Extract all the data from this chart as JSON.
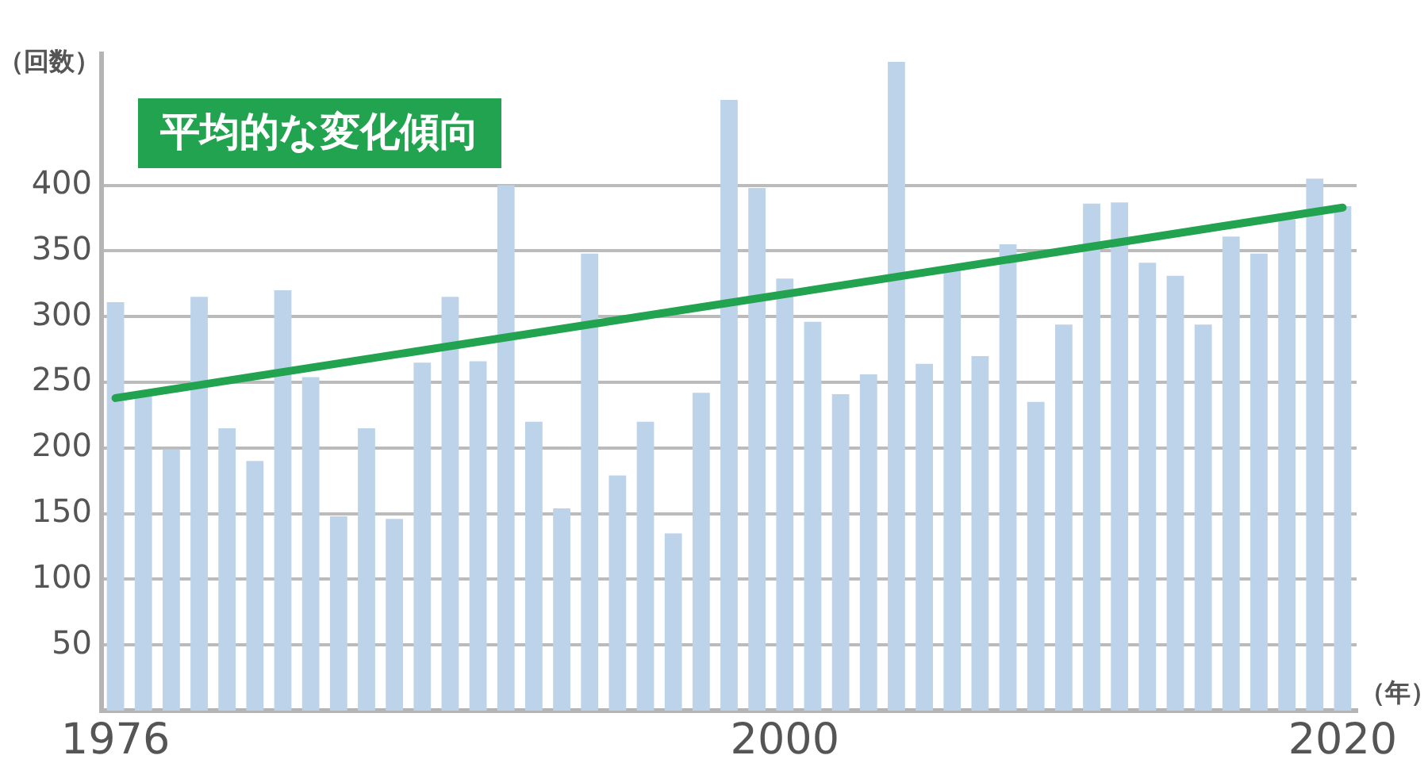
{
  "chart_data": {
    "type": "bar",
    "xlabel": "（年）",
    "ylabel": "（回数）",
    "x": [
      1976,
      1977,
      1978,
      1979,
      1980,
      1981,
      1982,
      1983,
      1984,
      1985,
      1986,
      1987,
      1988,
      1989,
      1990,
      1991,
      1992,
      1993,
      1994,
      1995,
      1996,
      1997,
      1998,
      1999,
      2000,
      2001,
      2002,
      2003,
      2004,
      2005,
      2006,
      2007,
      2008,
      2009,
      2010,
      2011,
      2012,
      2013,
      2014,
      2015,
      2016,
      2017,
      2018,
      2019,
      2020
    ],
    "xlim": [
      1975.5,
      2020.5
    ],
    "xticks": [
      1976,
      2000,
      2020
    ],
    "ylim": [
      0,
      500
    ],
    "yticks": [
      50,
      100,
      150,
      200,
      250,
      300,
      350,
      400
    ],
    "series": [
      {
        "color": "#bdd3ea",
        "values": [
          311,
          240,
          199,
          315,
          215,
          190,
          320,
          254,
          148,
          215,
          146,
          265,
          315,
          266,
          400,
          220,
          154,
          348,
          179,
          220,
          135,
          242,
          465,
          398,
          329,
          296,
          241,
          256,
          494,
          264,
          335,
          270,
          355,
          235,
          294,
          386,
          387,
          341,
          331,
          294,
          361,
          348,
          374,
          405,
          384
        ]
      },
      {
        "name": "平均的な変化傾向",
        "type": "line",
        "color": "#22a34f",
        "x": [
          1976,
          2020
        ],
        "values": [
          238,
          383
        ]
      }
    ],
    "grid": "y",
    "legend": "top left",
    "marker": "none"
  }
}
